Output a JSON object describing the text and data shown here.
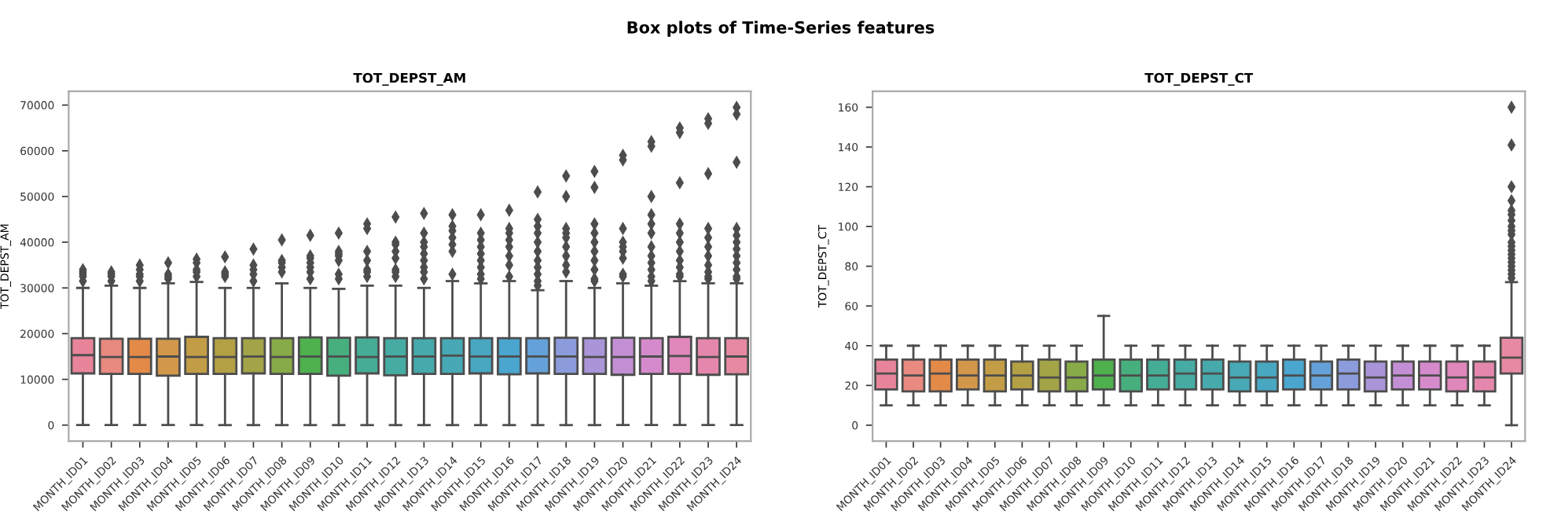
{
  "chart_data": [
    {
      "type": "box",
      "title": "TOT_DEPST_AM",
      "ylabel": "TOT_DEPST_AM",
      "annotations": [
        "Box plots of Time-Series features"
      ],
      "marker": "diamond",
      "categories": [
        "MONTH_ID01",
        "MONTH_ID02",
        "MONTH_ID03",
        "MONTH_ID04",
        "MONTH_ID05",
        "MONTH_ID06",
        "MONTH_ID07",
        "MONTH_ID08",
        "MONTH_ID09",
        "MONTH_ID10",
        "MONTH_ID11",
        "MONTH_ID12",
        "MONTH_ID13",
        "MONTH_ID14",
        "MONTH_ID15",
        "MONTH_ID16",
        "MONTH_ID17",
        "MONTH_ID18",
        "MONTH_ID19",
        "MONTH_ID20",
        "MONTH_ID21",
        "MONTH_ID22",
        "MONTH_ID23",
        "MONTH_ID24"
      ],
      "colors": [
        "#e8849a",
        "#e88a80",
        "#e38a48",
        "#d2974a",
        "#c29d46",
        "#b3a045",
        "#a3a447",
        "#88aa48",
        "#4fb04e",
        "#47ae7e",
        "#45ac95",
        "#45aba3",
        "#46aaac",
        "#47a9b6",
        "#48a7c1",
        "#4aa5cf",
        "#64a1d8",
        "#8c9bdb",
        "#aa95d8",
        "#c38fd4",
        "#d58bcb",
        "#e087bb",
        "#e587ad",
        "#e789a2"
      ],
      "ylim": [
        -3500,
        73000
      ],
      "yticks": [
        0,
        10000,
        20000,
        30000,
        40000,
        50000,
        60000,
        70000
      ],
      "boxes": [
        {
          "low": 0,
          "q1": 11300,
          "median": 15300,
          "q3": 19000,
          "high": 30000,
          "outliers": [
            31500,
            32500,
            33000,
            33500,
            34000
          ]
        },
        {
          "low": 0,
          "q1": 11200,
          "median": 14900,
          "q3": 18900,
          "high": 30500,
          "outliers": [
            31500,
            32500,
            33000,
            33500
          ]
        },
        {
          "low": 0,
          "q1": 11200,
          "median": 14900,
          "q3": 18900,
          "high": 30000,
          "outliers": [
            31500,
            32500,
            33000,
            34000,
            35000
          ]
        },
        {
          "low": 0,
          "q1": 10800,
          "median": 15000,
          "q3": 18900,
          "high": 31000,
          "outliers": [
            32000,
            32500,
            33000,
            35500
          ]
        },
        {
          "low": 0,
          "q1": 11200,
          "median": 14900,
          "q3": 19300,
          "high": 31300,
          "outliers": [
            32500,
            33500,
            34000,
            35500,
            36300
          ]
        },
        {
          "low": 0,
          "q1": 11200,
          "median": 14900,
          "q3": 19000,
          "high": 30000,
          "outliers": [
            32500,
            33000,
            33500,
            36800
          ]
        },
        {
          "low": 0,
          "q1": 11300,
          "median": 15000,
          "q3": 19000,
          "high": 30000,
          "outliers": [
            31500,
            33000,
            34000,
            35000,
            38500
          ]
        },
        {
          "low": 0,
          "q1": 11200,
          "median": 14900,
          "q3": 19000,
          "high": 31000,
          "outliers": [
            33500,
            34500,
            35500,
            36000,
            40500
          ]
        },
        {
          "low": 0,
          "q1": 11200,
          "median": 15000,
          "q3": 19200,
          "high": 30000,
          "outliers": [
            32000,
            33500,
            34500,
            35500,
            36500,
            37000,
            41500
          ]
        },
        {
          "low": 0,
          "q1": 10800,
          "median": 15000,
          "q3": 19100,
          "high": 29800,
          "outliers": [
            32000,
            33000,
            36000,
            37000,
            37500,
            38000,
            42000
          ]
        },
        {
          "low": 0,
          "q1": 11300,
          "median": 14900,
          "q3": 19200,
          "high": 30500,
          "outliers": [
            32500,
            33500,
            34000,
            36000,
            38000,
            43000,
            44000
          ]
        },
        {
          "low": 0,
          "q1": 10900,
          "median": 15000,
          "q3": 19000,
          "high": 30500,
          "outliers": [
            32500,
            33500,
            34000,
            36500,
            38000,
            39500,
            40000,
            45500
          ]
        },
        {
          "low": 0,
          "q1": 11200,
          "median": 15000,
          "q3": 19000,
          "high": 30000,
          "outliers": [
            32000,
            33500,
            34500,
            36000,
            37500,
            39000,
            40000,
            42000,
            46300
          ]
        },
        {
          "low": 0,
          "q1": 11200,
          "median": 15200,
          "q3": 19000,
          "high": 31500,
          "outliers": [
            33000,
            38000,
            39500,
            41000,
            42500,
            43500,
            46000
          ]
        },
        {
          "low": 0,
          "q1": 11300,
          "median": 15000,
          "q3": 19000,
          "high": 31000,
          "outliers": [
            32000,
            33000,
            34500,
            36000,
            37500,
            39000,
            40500,
            42000,
            46000
          ]
        },
        {
          "low": 0,
          "q1": 11100,
          "median": 15000,
          "q3": 19000,
          "high": 31500,
          "outliers": [
            32500,
            35000,
            37000,
            39000,
            40500,
            42000,
            43000,
            47000
          ]
        },
        {
          "low": 0,
          "q1": 11300,
          "median": 15000,
          "q3": 19000,
          "high": 29500,
          "outliers": [
            30500,
            31500,
            33000,
            34500,
            36000,
            38000,
            40000,
            42000,
            43500,
            45000,
            51000
          ]
        },
        {
          "low": 0,
          "q1": 11200,
          "median": 15000,
          "q3": 19100,
          "high": 31500,
          "outliers": [
            33500,
            35000,
            37000,
            39000,
            41000,
            42000,
            43000,
            50000,
            54500
          ]
        },
        {
          "low": 0,
          "q1": 11200,
          "median": 14900,
          "q3": 19000,
          "high": 30000,
          "outliers": [
            31500,
            32000,
            34000,
            36000,
            38000,
            40000,
            42000,
            44000,
            52000,
            55500
          ]
        },
        {
          "low": 0,
          "q1": 11000,
          "median": 14900,
          "q3": 19100,
          "high": 31000,
          "outliers": [
            32500,
            33000,
            36500,
            38000,
            39000,
            40000,
            43000,
            58000,
            59000
          ]
        },
        {
          "low": 0,
          "q1": 11200,
          "median": 15000,
          "q3": 19000,
          "high": 30500,
          "outliers": [
            31500,
            32500,
            34000,
            35500,
            37000,
            39000,
            42000,
            44000,
            46000,
            50000,
            61000,
            62000
          ]
        },
        {
          "low": 0,
          "q1": 11200,
          "median": 15100,
          "q3": 19300,
          "high": 31500,
          "outliers": [
            32500,
            33000,
            34500,
            36000,
            38000,
            40000,
            42000,
            44000,
            53000,
            64000,
            65000
          ]
        },
        {
          "low": 0,
          "q1": 11000,
          "median": 14900,
          "q3": 19000,
          "high": 31000,
          "outliers": [
            32000,
            32500,
            33500,
            35000,
            37000,
            39000,
            41000,
            43000,
            55000,
            66000,
            67000
          ]
        },
        {
          "low": 0,
          "q1": 11100,
          "median": 15000,
          "q3": 19000,
          "high": 31000,
          "outliers": [
            32000,
            32500,
            34000,
            35500,
            37000,
            38500,
            40000,
            41500,
            43000,
            57500,
            68000,
            69500
          ]
        }
      ]
    },
    {
      "type": "box",
      "title": "TOT_DEPST_CT",
      "ylabel": "TOT_DEPST_CT",
      "marker": "diamond",
      "categories": [
        "MONTH_ID01",
        "MONTH_ID02",
        "MONTH_ID03",
        "MONTH_ID04",
        "MONTH_ID05",
        "MONTH_ID06",
        "MONTH_ID07",
        "MONTH_ID08",
        "MONTH_ID09",
        "MONTH_ID10",
        "MONTH_ID11",
        "MONTH_ID12",
        "MONTH_ID13",
        "MONTH_ID14",
        "MONTH_ID15",
        "MONTH_ID16",
        "MONTH_ID17",
        "MONTH_ID18",
        "MONTH_ID19",
        "MONTH_ID20",
        "MONTH_ID21",
        "MONTH_ID22",
        "MONTH_ID23",
        "MONTH_ID24"
      ],
      "colors": [
        "#e8849a",
        "#e88a80",
        "#e38a48",
        "#d2974a",
        "#c29d46",
        "#b3a045",
        "#a3a447",
        "#88aa48",
        "#4fb04e",
        "#47ae7e",
        "#45ac95",
        "#45aba3",
        "#46aaac",
        "#47a9b6",
        "#48a7c1",
        "#4aa5cf",
        "#64a1d8",
        "#8c9bdb",
        "#aa95d8",
        "#c38fd4",
        "#d58bcb",
        "#e087bb",
        "#e587ad",
        "#e789a2"
      ],
      "ylim": [
        -8,
        168
      ],
      "yticks": [
        0,
        20,
        40,
        60,
        80,
        100,
        120,
        140,
        160
      ],
      "boxes": [
        {
          "low": 10,
          "q1": 18,
          "median": 26,
          "q3": 33,
          "high": 40
        },
        {
          "low": 10,
          "q1": 17,
          "median": 25,
          "q3": 33,
          "high": 40
        },
        {
          "low": 10,
          "q1": 17,
          "median": 26,
          "q3": 33,
          "high": 40
        },
        {
          "low": 10,
          "q1": 18,
          "median": 25,
          "q3": 33,
          "high": 40
        },
        {
          "low": 10,
          "q1": 17,
          "median": 25,
          "q3": 33,
          "high": 40
        },
        {
          "low": 10,
          "q1": 18,
          "median": 25,
          "q3": 32,
          "high": 40
        },
        {
          "low": 10,
          "q1": 17,
          "median": 24,
          "q3": 33,
          "high": 40
        },
        {
          "low": 10,
          "q1": 17,
          "median": 24,
          "q3": 32,
          "high": 40
        },
        {
          "low": 10,
          "q1": 18,
          "median": 25,
          "q3": 33,
          "high": 55
        },
        {
          "low": 10,
          "q1": 17,
          "median": 25,
          "q3": 33,
          "high": 40
        },
        {
          "low": 10,
          "q1": 18,
          "median": 25,
          "q3": 33,
          "high": 40
        },
        {
          "low": 10,
          "q1": 18,
          "median": 26,
          "q3": 33,
          "high": 40
        },
        {
          "low": 10,
          "q1": 18,
          "median": 26,
          "q3": 33,
          "high": 40
        },
        {
          "low": 10,
          "q1": 17,
          "median": 24,
          "q3": 32,
          "high": 40
        },
        {
          "low": 10,
          "q1": 17,
          "median": 24,
          "q3": 32,
          "high": 40
        },
        {
          "low": 10,
          "q1": 18,
          "median": 25,
          "q3": 33,
          "high": 40
        },
        {
          "low": 10,
          "q1": 18,
          "median": 25,
          "q3": 32,
          "high": 40
        },
        {
          "low": 10,
          "q1": 18,
          "median": 26,
          "q3": 33,
          "high": 40
        },
        {
          "low": 10,
          "q1": 17,
          "median": 24,
          "q3": 32,
          "high": 40
        },
        {
          "low": 10,
          "q1": 18,
          "median": 25,
          "q3": 32,
          "high": 40
        },
        {
          "low": 10,
          "q1": 18,
          "median": 25,
          "q3": 32,
          "high": 40
        },
        {
          "low": 10,
          "q1": 17,
          "median": 24,
          "q3": 32,
          "high": 40
        },
        {
          "low": 10,
          "q1": 17,
          "median": 24,
          "q3": 32,
          "high": 40
        },
        {
          "low": 0,
          "q1": 26,
          "median": 34,
          "q3": 44,
          "high": 72,
          "outliers": [
            74,
            76,
            78,
            80,
            82,
            84,
            86,
            88,
            90,
            92,
            96,
            98,
            100,
            103,
            106,
            108,
            113,
            120,
            141,
            160
          ]
        }
      ]
    }
  ]
}
